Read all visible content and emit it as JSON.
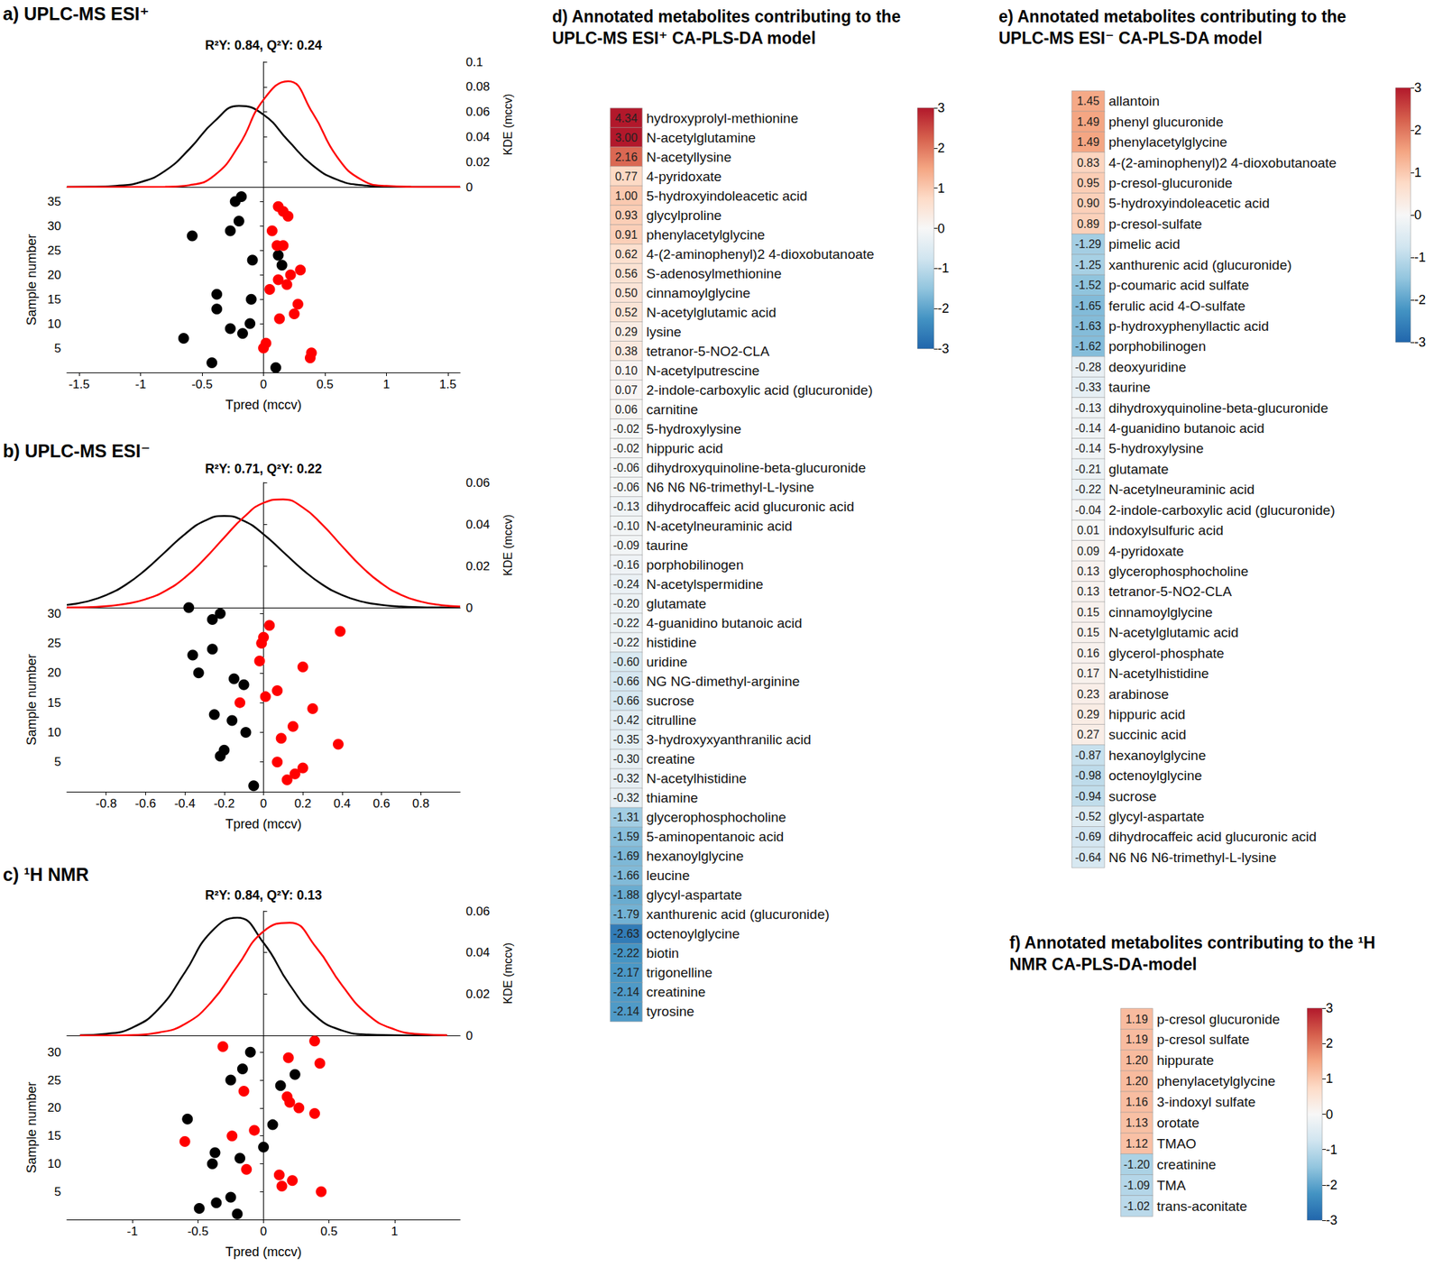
{
  "chart_data": [
    {
      "type": "scatter",
      "title": "a) UPLC-MS ESI⁺",
      "subtitle": "R²Y: 0.84, Q²Y: 0.24",
      "x_label": "Tpred (mccv)",
      "y_label": "Sample number",
      "xlim": [
        -1.6,
        1.6
      ],
      "xticks": [
        -1.5,
        -1,
        -0.5,
        0,
        0.5,
        1,
        1.5
      ],
      "ylim": [
        0,
        38
      ],
      "yticks": [
        5,
        10,
        15,
        20,
        25,
        30,
        35
      ],
      "series": [
        {
          "color": "#000000",
          "marker": "circle",
          "x": [
            -0.18,
            -0.23,
            -0.27,
            -0.2,
            -0.58,
            0.12,
            -0.09,
            0.15,
            -0.38,
            -0.1,
            -0.38,
            -0.27,
            -0.17,
            -0.11,
            -0.65,
            -0.42,
            0.1
          ],
          "values": [
            36,
            35,
            29,
            31,
            28,
            24,
            23,
            22,
            16,
            15,
            13,
            9,
            8,
            10,
            7,
            2,
            1
          ]
        },
        {
          "color": "#ff0000",
          "marker": "circle",
          "x": [
            0.12,
            0.16,
            0.2,
            0.07,
            0.11,
            0.16,
            0.3,
            0.22,
            0.12,
            0.19,
            0.05,
            0.28,
            0.25,
            0.13,
            0.02,
            0.0,
            0.39,
            0.38
          ],
          "values": [
            34,
            33,
            32,
            29,
            26,
            26,
            21,
            20,
            19,
            18,
            17,
            14,
            12,
            11,
            6,
            5,
            4,
            3
          ]
        }
      ],
      "density": {
        "type": "line",
        "y_label": "KDE (mccv)",
        "ylim": [
          0,
          0.1
        ],
        "yticks": [
          0,
          0.02,
          0.04,
          0.06,
          0.08,
          0.1
        ],
        "series": [
          {
            "color": "#000000",
            "x": [
              -1.6,
              -1.4,
              -1.2,
              -1.0,
              -0.8,
              -0.6,
              -0.4,
              -0.2,
              0,
              0.2,
              0.4,
              0.6,
              0.8,
              1.0,
              1.2,
              1.4,
              1.6
            ],
            "values": [
              0,
              0.0001,
              0.0009,
              0.0039,
              0.0129,
              0.0306,
              0.0524,
              0.0648,
              0.0578,
              0.0371,
              0.0172,
              0.0058,
              0.0014,
              0.0002,
              0,
              0,
              0
            ]
          },
          {
            "color": "#ff0000",
            "x": [
              -1.6,
              -1.4,
              -1.2,
              -1.0,
              -0.8,
              -0.6,
              -0.4,
              -0.2,
              0,
              0.2,
              0.4,
              0.6,
              0.8,
              1.0,
              1.2,
              1.4,
              1.6
            ],
            "values": [
              0,
              0,
              0,
              0,
              0.0001,
              0.0015,
              0.0092,
              0.0332,
              0.0697,
              0.0845,
              0.0591,
              0.0239,
              0.0056,
              0.0008,
              0.0001,
              0,
              0
            ]
          }
        ]
      }
    },
    {
      "type": "scatter",
      "title": "b) UPLC-MS ESI⁻",
      "subtitle": "R²Y: 0.71, Q²Y: 0.22",
      "x_label": "Tpred (mccv)",
      "y_label": "Sample number",
      "xlim": [
        -1,
        1
      ],
      "xticks": [
        -0.8,
        -0.6,
        -0.4,
        -0.2,
        0,
        0.2,
        0.4,
        0.6,
        0.8
      ],
      "ylim": [
        0,
        31
      ],
      "yticks": [
        5,
        10,
        15,
        20,
        25,
        30
      ],
      "series": [
        {
          "color": "#000000",
          "marker": "circle",
          "x": [
            -0.38,
            -0.22,
            -0.26,
            -0.36,
            -0.26,
            -0.33,
            -0.15,
            -0.1,
            -0.25,
            -0.16,
            -0.09,
            -0.2,
            -0.22,
            -0.05
          ],
          "values": [
            31,
            30,
            29,
            23,
            24,
            20,
            19,
            18,
            13,
            12,
            10,
            7,
            6,
            1
          ]
        },
        {
          "color": "#ff0000",
          "marker": "circle",
          "x": [
            0.03,
            0.0,
            -0.01,
            0.39,
            -0.02,
            0.2,
            0.07,
            0.01,
            -0.12,
            0.25,
            0.15,
            0.09,
            0.38,
            0.07,
            0.2,
            0.16,
            0.12
          ],
          "values": [
            28,
            26,
            25,
            27,
            22,
            21,
            17,
            16,
            15,
            14,
            11,
            9,
            8,
            5,
            4,
            3,
            2
          ]
        }
      ],
      "density": {
        "type": "line",
        "y_label": "KDE (mccv)",
        "ylim": [
          0,
          0.06
        ],
        "yticks": [
          0,
          0.02,
          0.04,
          0.06
        ],
        "series": [
          {
            "color": "#000000",
            "x": [
              -1,
              -0.9,
              -0.8,
              -0.7,
              -0.6,
              -0.5,
              -0.4,
              -0.3,
              -0.2,
              -0.1,
              0,
              0.1,
              0.2,
              0.3,
              0.4,
              0.5,
              0.6,
              0.7,
              0.8,
              0.9,
              1
            ],
            "values": [
              0.0013,
              0.0029,
              0.006,
              0.011,
              0.0181,
              0.0267,
              0.0352,
              0.0416,
              0.044,
              0.0416,
              0.0352,
              0.0267,
              0.0181,
              0.011,
              0.006,
              0.0029,
              0.0013,
              0.0005,
              0.0002,
              0.0001,
              0
            ]
          },
          {
            "color": "#ff0000",
            "x": [
              -1,
              -0.9,
              -0.8,
              -0.7,
              -0.6,
              -0.5,
              -0.4,
              -0.3,
              -0.2,
              -0.1,
              0,
              0.1,
              0.2,
              0.3,
              0.4,
              0.5,
              0.6,
              0.7,
              0.8,
              0.9,
              1
            ],
            "values": [
              0.0001,
              0.0002,
              0.0007,
              0.0018,
              0.004,
              0.008,
              0.0144,
              0.0233,
              0.0336,
              0.0434,
              0.0502,
              0.0519,
              0.048,
              0.0397,
              0.0294,
              0.0195,
              0.0116,
              0.0061,
              0.0029,
              0.0012,
              0.0005
            ]
          }
        ]
      }
    },
    {
      "type": "scatter",
      "title": "c) ¹H NMR",
      "subtitle": "R²Y: 0.84, Q²Y: 0.13",
      "x_label": "Tpred (mccv)",
      "y_label": "Sample number",
      "xlim": [
        -1.5,
        1.5
      ],
      "xticks": [
        -1,
        -0.5,
        0,
        0.5,
        1
      ],
      "ylim": [
        0,
        33
      ],
      "yticks": [
        5,
        10,
        15,
        20,
        25,
        30
      ],
      "series": [
        {
          "color": "#000000",
          "marker": "circle",
          "x": [
            -0.1,
            -0.16,
            -0.25,
            0.13,
            0.24,
            0.07,
            -0.58,
            0.0,
            -0.37,
            -0.18,
            -0.39,
            -0.25,
            -0.36,
            -0.49,
            -0.2
          ],
          "values": [
            30,
            27,
            25,
            24,
            26,
            17,
            18,
            13,
            12,
            11,
            10,
            4,
            3,
            2,
            1
          ]
        },
        {
          "color": "#ff0000",
          "marker": "circle",
          "x": [
            -0.31,
            0.39,
            0.19,
            0.43,
            -0.15,
            0.18,
            0.2,
            0.27,
            0.39,
            -0.07,
            -0.24,
            -0.6,
            -0.13,
            0.12,
            0.22,
            0.14,
            0.44
          ],
          "values": [
            31,
            32,
            29,
            28,
            23,
            22,
            21,
            20,
            19,
            16,
            15,
            14,
            9,
            8,
            7,
            6,
            5
          ]
        }
      ],
      "density": {
        "type": "line",
        "y_label": "KDE (mccv)",
        "ylim": [
          0,
          0.06
        ],
        "yticks": [
          0,
          0.02,
          0.04,
          0.06
        ],
        "series": [
          {
            "color": "#000000",
            "x": [
              -1.4,
              -1.2,
              -1.0,
              -0.8,
              -0.6,
              -0.4,
              -0.2,
              0,
              0.2,
              0.4,
              0.6,
              0.8,
              1.0,
              1.2,
              1.4
            ],
            "values": [
              0.0001,
              0.0008,
              0.0038,
              0.0128,
              0.0304,
              0.0499,
              0.0568,
              0.0447,
              0.0244,
              0.0092,
              0.0024,
              0.0004,
              0.0001,
              0,
              0
            ]
          },
          {
            "color": "#ff0000",
            "x": [
              -1.4,
              -1.2,
              -1.0,
              -0.8,
              -0.6,
              -0.4,
              -0.2,
              0,
              0.2,
              0.4,
              0.6,
              0.8,
              1.0,
              1.2,
              1.4
            ],
            "values": [
              0,
              0,
              0.0002,
              0.0014,
              0.0055,
              0.016,
              0.0334,
              0.0502,
              0.0544,
              0.0426,
              0.0241,
              0.0098,
              0.0029,
              0.0006,
              0.0001
            ]
          }
        ]
      }
    },
    {
      "type": "heatmap",
      "title": "d) Annotated metabolites contributing to the UPLC-MS ESI⁺ CA-PLS-DA model",
      "data_labels": true,
      "categories": [
        "hydroxyprolyl-methionine",
        "N-acetylglutamine",
        "N-acetyllysine",
        "4-pyridoxate",
        "5-hydroxyindoleacetic acid",
        "glycylproline",
        "phenylacetylglycine",
        "4-(2-aminophenyl)2 4-dioxobutanoate",
        "S-adenosylmethionine",
        "cinnamoylglycine",
        "N-acetylglutamic acid",
        "lysine",
        "tetranor-5-NO2-CLA",
        "N-acetylputrescine",
        "2-indole-carboxylic acid (glucuronide)",
        "carnitine",
        "5-hydroxylysine",
        "hippuric acid",
        "dihydroxyquinoline-beta-glucuronide",
        "N6 N6 N6-trimethyl-L-lysine",
        "dihydrocaffeic acid glucuronic acid",
        "N-acetylneuraminic acid",
        "taurine",
        "porphobilinogen",
        "N-acetylspermidine",
        "glutamate",
        "4-guanidino butanoic acid",
        "histidine",
        "uridine",
        "NG NG-dimethyl-arginine",
        "sucrose",
        "citrulline",
        "3-hydroxyxyanthranilic acid",
        "creatine",
        "N-acetylhistidine",
        "thiamine",
        "glycerophosphocholine",
        "5-aminopentanoic acid",
        "hexanoylglycine",
        "leucine",
        "glycyl-aspartate",
        "xanthurenic acid (glucuronide)",
        "octenoylglycine",
        "biotin",
        "trigonelline",
        "creatinine",
        "tyrosine"
      ],
      "values": [
        4.34,
        3.0,
        2.16,
        0.77,
        1.0,
        0.93,
        0.91,
        0.62,
        0.56,
        0.5,
        0.52,
        0.29,
        0.38,
        0.1,
        0.07,
        0.06,
        -0.02,
        -0.02,
        -0.06,
        -0.06,
        -0.13,
        -0.1,
        -0.09,
        -0.16,
        -0.24,
        -0.2,
        -0.22,
        -0.22,
        -0.6,
        -0.66,
        -0.66,
        -0.42,
        -0.35,
        -0.3,
        -0.32,
        -0.32,
        -1.31,
        -1.59,
        -1.69,
        -1.66,
        -1.88,
        -1.79,
        -2.63,
        -2.22,
        -2.17,
        -2.14,
        -2.14
      ],
      "value_labels": [
        "4.34",
        "3.00",
        "2.16",
        "0.77",
        "1.00",
        "0.93",
        "0.91",
        "0.62",
        "0.56",
        "0.50",
        "0.52",
        "0.29",
        "0.38",
        "0.10",
        "0.07",
        "0.06",
        "-0.02",
        "-0.02",
        "-0.06",
        "-0.06",
        "-0.13",
        "-0.10",
        "-0.09",
        "-0.16",
        "-0.24",
        "-0.20",
        "-0.22",
        "-0.22",
        "-0.60",
        "-0.66",
        "-0.66",
        "-0.42",
        "-0.35",
        "-0.30",
        "-0.32",
        "-0.32",
        "-1.31",
        "-1.59",
        "-1.69",
        "-1.66",
        "-1.88",
        "-1.79",
        "-2.63",
        "-2.22",
        "-2.17",
        "-2.14",
        "-2.14"
      ],
      "colorbar": {
        "lim": [
          -3,
          3
        ],
        "ticks": [
          -3,
          -2,
          -1,
          0,
          1,
          2,
          3
        ]
      }
    },
    {
      "type": "heatmap",
      "title": "e) Annotated metabolites contributing to the UPLC-MS ESI⁻ CA-PLS-DA model",
      "data_labels": true,
      "categories": [
        "allantoin",
        "phenyl glucuronide",
        "phenylacetylglycine",
        "4-(2-aminophenyl)2 4-dioxobutanoate",
        "p-cresol-glucuronide",
        "5-hydroxyindoleacetic acid",
        "p-cresol-sulfate",
        "pimelic acid",
        "xanthurenic acid (glucuronide)",
        "p-coumaric acid sulfate",
        "ferulic acid 4-O-sulfate",
        "p-hydroxyphenyllactic acid",
        "porphobilinogen",
        "deoxyuridine",
        "taurine",
        "dihydroxyquinoline-beta-glucuronide",
        "4-guanidino butanoic acid",
        "5-hydroxylysine",
        "glutamate",
        "N-acetylneuraminic acid",
        "2-indole-carboxylic acid (glucuronide)",
        "indoxylsulfuric acid",
        "4-pyridoxate",
        "glycerophosphocholine",
        "tetranor-5-NO2-CLA",
        "cinnamoylglycine",
        "N-acetylglutamic acid",
        "glycerol-phosphate",
        "N-acetylhistidine",
        "arabinose",
        "hippuric acid",
        "succinic acid",
        "hexanoylglycine",
        "octenoylglycine",
        "sucrose",
        "glycyl-aspartate",
        "dihydrocaffeic acid glucuronic acid",
        "N6 N6 N6-trimethyl-L-lysine"
      ],
      "values": [
        1.45,
        1.49,
        1.49,
        0.83,
        0.95,
        0.9,
        0.89,
        -1.29,
        -1.25,
        -1.52,
        -1.65,
        -1.63,
        -1.62,
        -0.28,
        -0.33,
        -0.13,
        -0.14,
        -0.14,
        -0.21,
        -0.22,
        -0.04,
        0.01,
        0.09,
        0.13,
        0.13,
        0.15,
        0.15,
        0.16,
        0.17,
        0.23,
        0.29,
        0.27,
        -0.87,
        -0.98,
        -0.94,
        -0.52,
        -0.69,
        -0.64
      ],
      "value_labels": [
        "1.45",
        "1.49",
        "1.49",
        "0.83",
        "0.95",
        "0.90",
        "0.89",
        "-1.29",
        "-1.25",
        "-1.52",
        "-1.65",
        "-1.63",
        "-1.62",
        "-0.28",
        "-0.33",
        "-0.13",
        "-0.14",
        "-0.14",
        "-0.21",
        "-0.22",
        "-0.04",
        "0.01",
        "0.09",
        "0.13",
        "0.13",
        "0.15",
        "0.15",
        "0.16",
        "0.17",
        "0.23",
        "0.29",
        "0.27",
        "-0.87",
        "-0.98",
        "-0.94",
        "-0.52",
        "-0.69",
        "-0.64"
      ],
      "colorbar": {
        "lim": [
          -3,
          3
        ],
        "ticks": [
          -3,
          -2,
          -1,
          0,
          1,
          2,
          3
        ]
      }
    },
    {
      "type": "heatmap",
      "title": "f) Annotated metabolites contributing to the ¹H NMR CA-PLS-DA-model",
      "data_labels": true,
      "categories": [
        "p-cresol glucuronide",
        "p-cresol sulfate",
        "hippurate",
        "phenylacetylglycine",
        "3-indoxyl sulfate",
        "orotate",
        "TMAO",
        "creatinine",
        "TMA",
        "trans-aconitate"
      ],
      "values": [
        1.19,
        1.19,
        1.2,
        1.2,
        1.16,
        1.13,
        1.12,
        -1.2,
        -1.09,
        -1.02
      ],
      "value_labels": [
        "1.19",
        "1.19",
        "1.20",
        "1.20",
        "1.16",
        "1.13",
        "1.12",
        "-1.20",
        "-1.09",
        "-1.02"
      ],
      "colorbar": {
        "lim": [
          -3,
          3
        ],
        "ticks": [
          -3,
          -2,
          -1,
          0,
          1,
          2,
          3
        ]
      }
    }
  ]
}
